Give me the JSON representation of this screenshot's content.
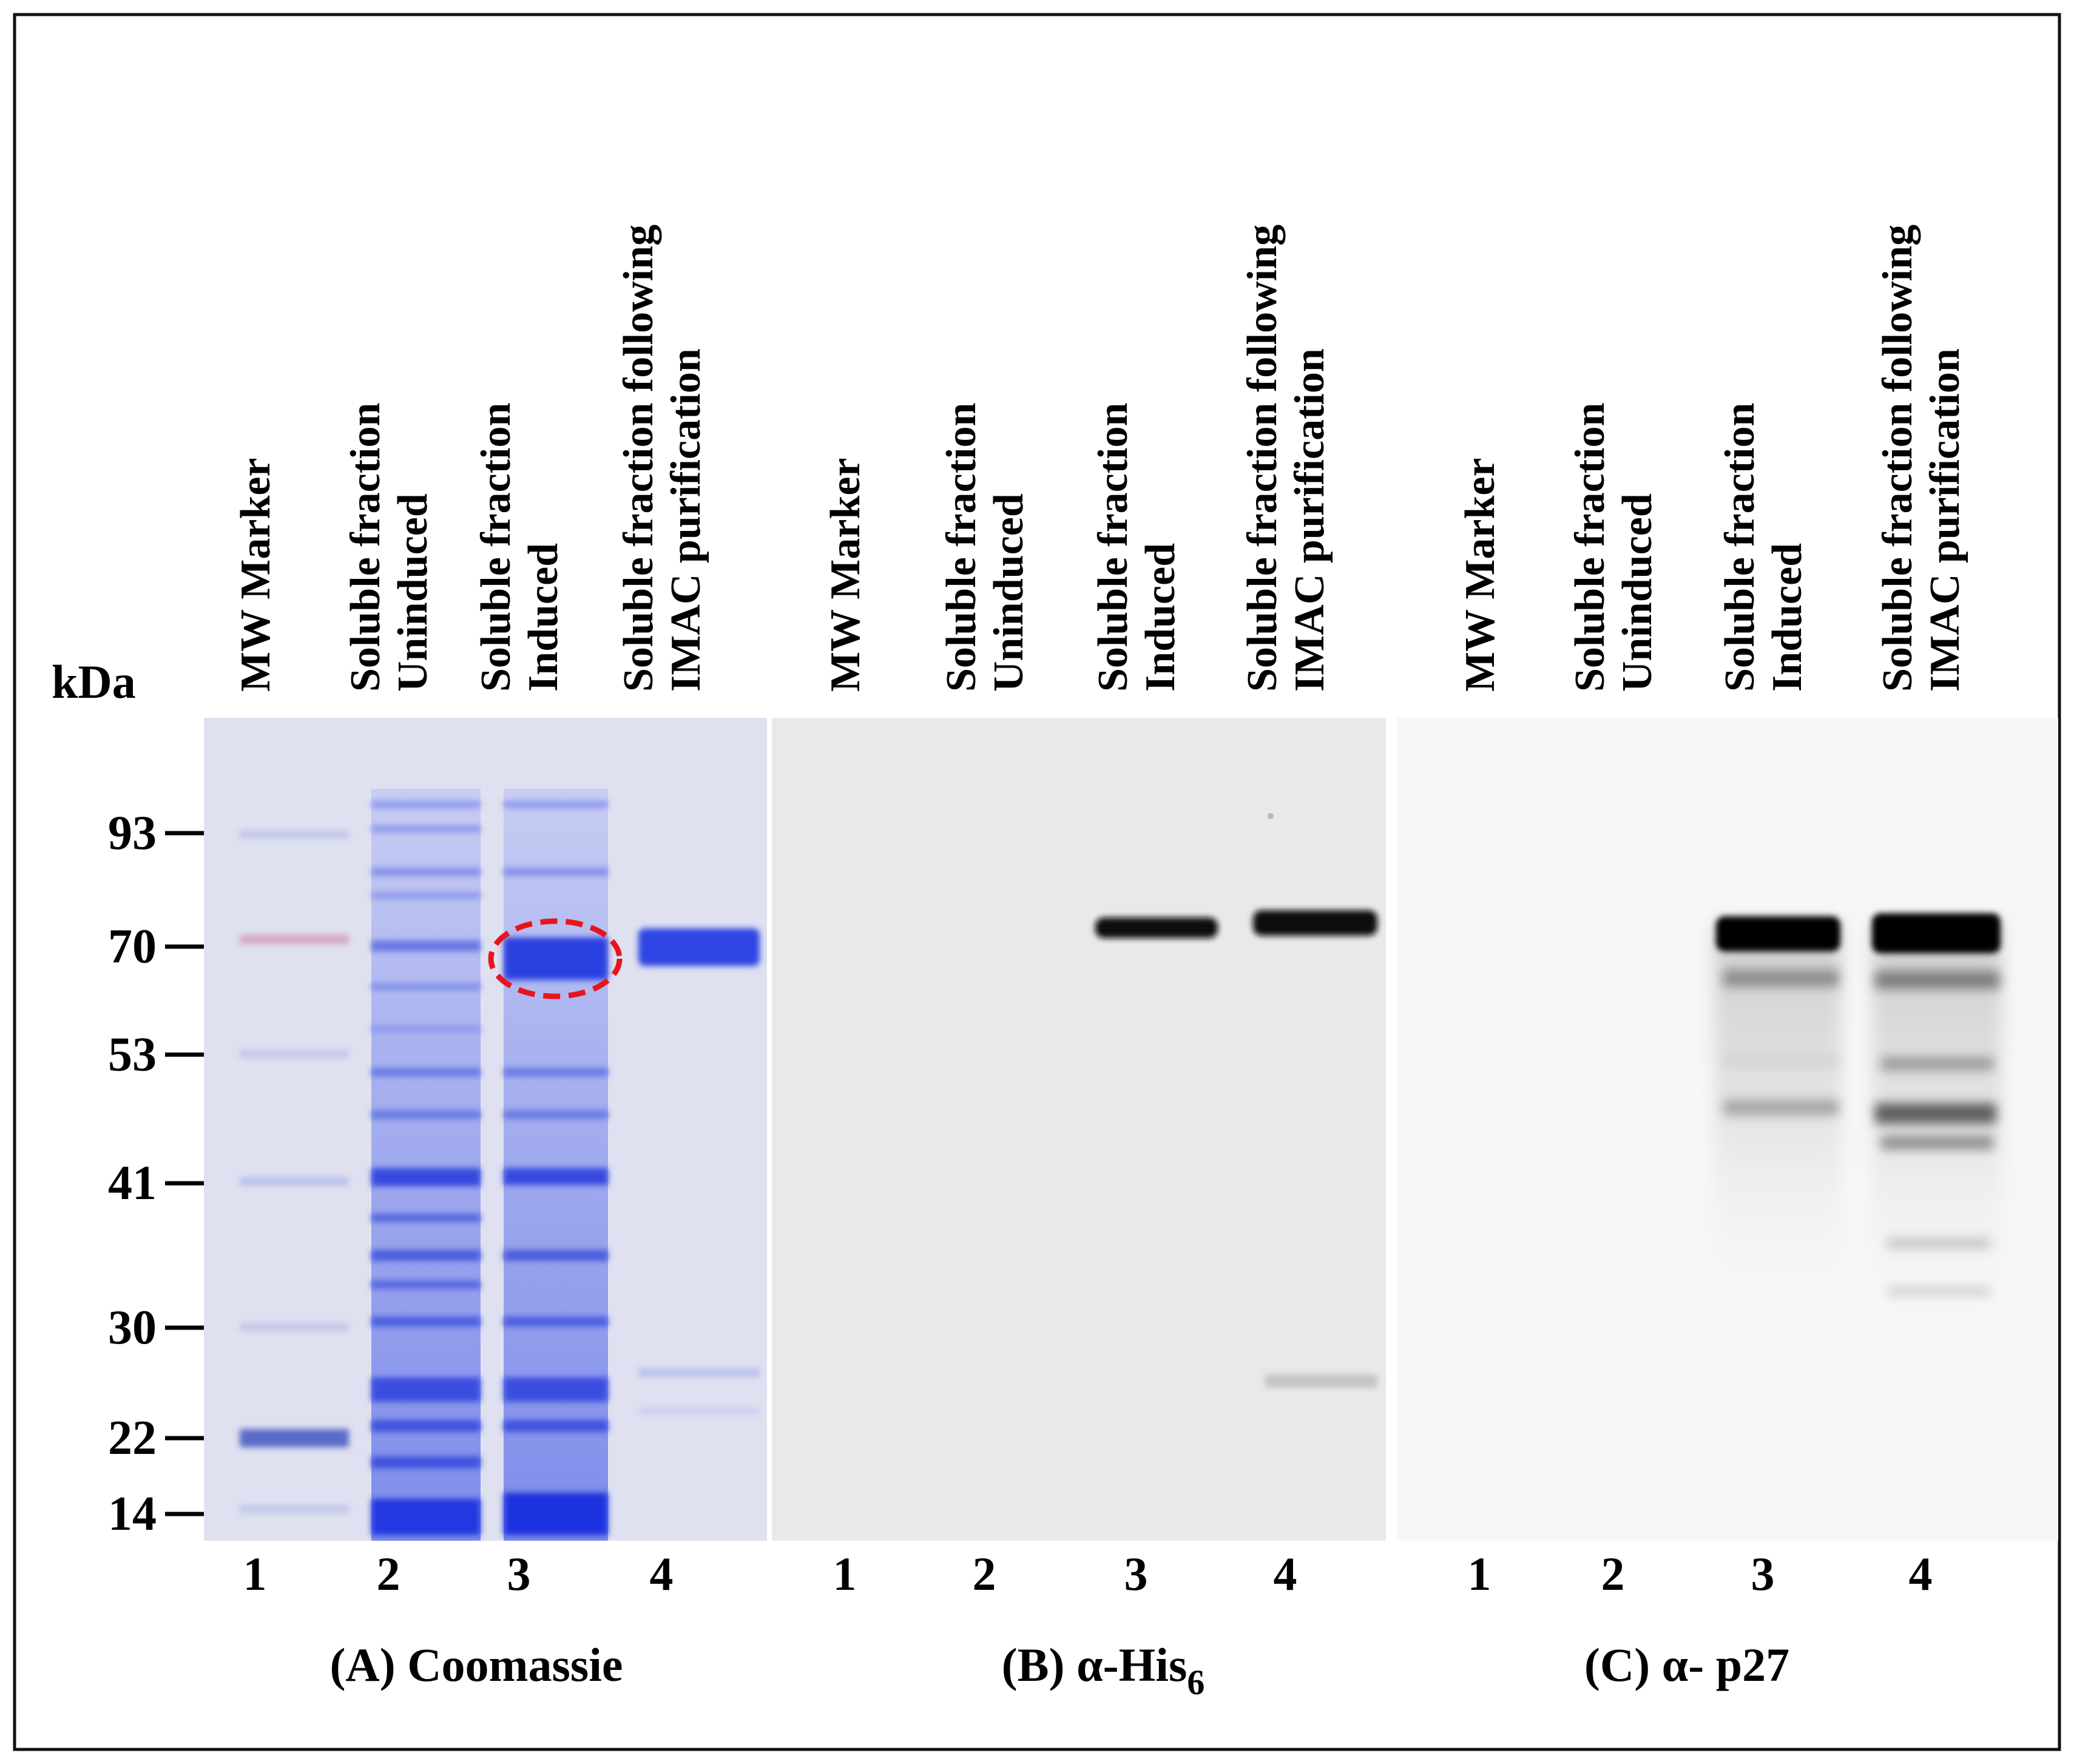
{
  "unit_label": "kDa",
  "mw_markers": [
    "93",
    "70",
    "53",
    "41",
    "30",
    "22",
    "14"
  ],
  "panels": [
    {
      "caption": "(A) Coomassie",
      "lanes": [
        {
          "label_lines": [
            "MW Marker"
          ],
          "number": "1"
        },
        {
          "label_lines": [
            "Soluble fraction",
            "Uninduced"
          ],
          "number": "2"
        },
        {
          "label_lines": [
            "Soluble fraction",
            "Induced"
          ],
          "number": "3"
        },
        {
          "label_lines": [
            "Soluble fraction following",
            "IMAC purification"
          ],
          "number": "4"
        }
      ]
    },
    {
      "caption_main": "(B) α-His",
      "caption_sub": "6",
      "lanes": [
        {
          "label_lines": [
            "MW Marker"
          ],
          "number": "1"
        },
        {
          "label_lines": [
            "Soluble fraction",
            "Uninduced"
          ],
          "number": "2"
        },
        {
          "label_lines": [
            "Soluble fraction",
            "Induced"
          ],
          "number": "3"
        },
        {
          "label_lines": [
            "Soluble fraction following",
            "IMAC purification"
          ],
          "number": "4"
        }
      ]
    },
    {
      "caption": "(C) α- p27",
      "lanes": [
        {
          "label_lines": [
            "MW Marker"
          ],
          "number": "1"
        },
        {
          "label_lines": [
            "Soluble fraction",
            "Uninduced"
          ],
          "number": "2"
        },
        {
          "label_lines": [
            "Soluble fraction",
            "Induced"
          ],
          "number": "3"
        },
        {
          "label_lines": [
            "Soluble fraction following",
            "IMAC purification"
          ],
          "number": "4"
        }
      ]
    }
  ],
  "colors": {
    "coomassie_bg": "#dfe1f0",
    "coomassie_band": "#2a3fe0",
    "western_bg": "#e9e9e9",
    "p27_bg": "#f7f7f7",
    "highlight_circle": "#e8141c"
  }
}
